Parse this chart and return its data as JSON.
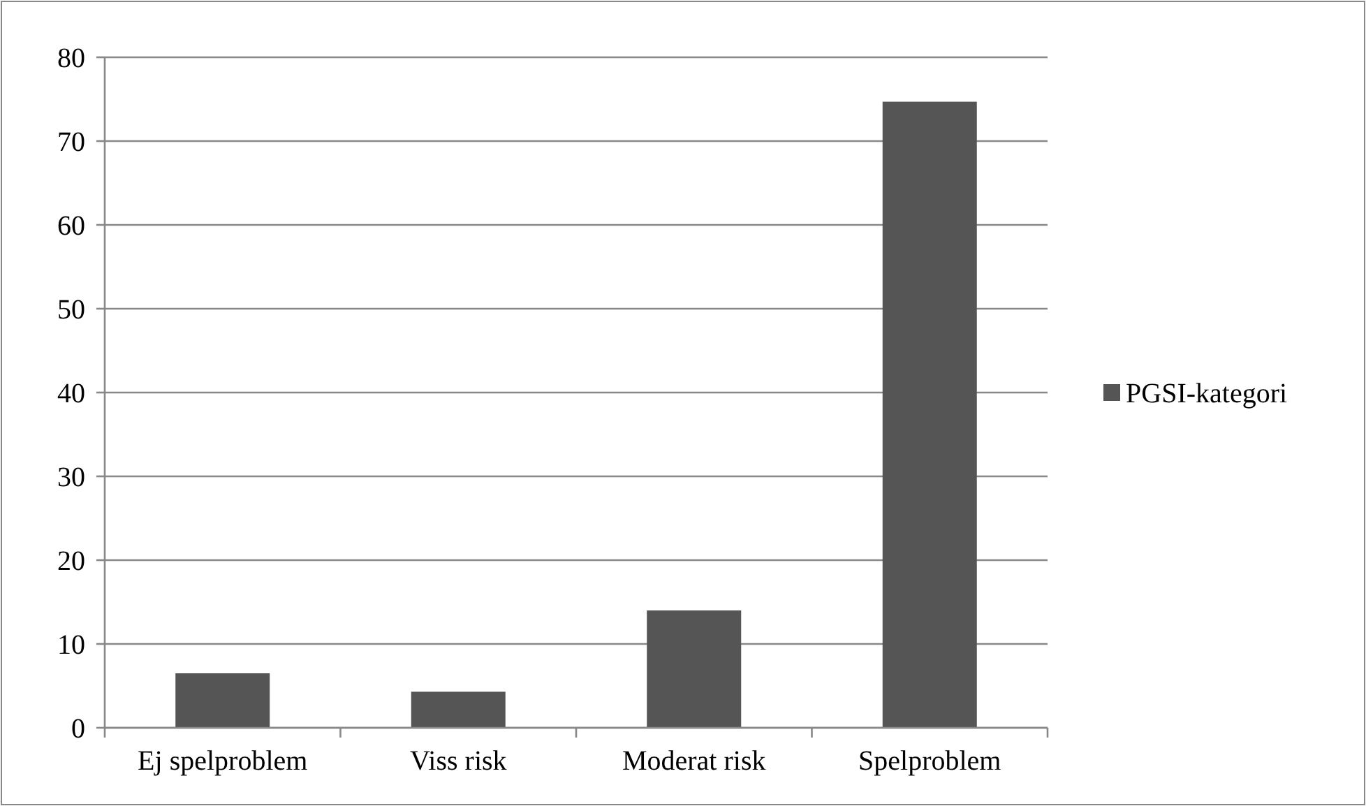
{
  "chart_data": {
    "type": "bar",
    "categories": [
      "Ej spelproblem",
      "Viss risk",
      "Moderat risk",
      "Spelproblem"
    ],
    "series": [
      {
        "name": "PGSI-kategori",
        "color": "#555555",
        "values": [
          6.5,
          4.3,
          14.0,
          74.7
        ]
      }
    ],
    "ylim": [
      0,
      80
    ],
    "yticks": [
      0,
      10,
      20,
      30,
      40,
      50,
      60,
      70,
      80
    ],
    "grid": "y",
    "legend": "right"
  }
}
